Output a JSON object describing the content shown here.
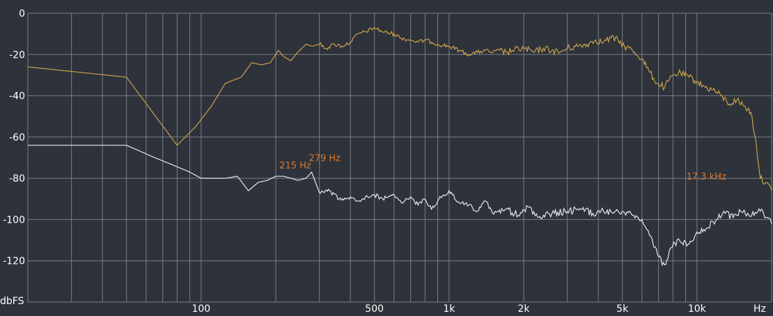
{
  "chart_data": {
    "type": "line",
    "title": "",
    "xlabel": "Hz",
    "ylabel": "dbFS",
    "x_scale": "log",
    "xlim": [
      20,
      20000
    ],
    "ylim": [
      -140,
      0
    ],
    "y_ticks": [
      0,
      -20,
      -40,
      -60,
      -80,
      -100,
      -120
    ],
    "y_tick_labels": [
      "0",
      "-20",
      "-40",
      "-60",
      "-80",
      "-100",
      "-120"
    ],
    "x_tick_values": [
      100,
      500,
      1000,
      2000,
      5000,
      10000
    ],
    "x_tick_labels": [
      "100",
      "500",
      "1k",
      "2k",
      "5k",
      "10k"
    ],
    "grid": true,
    "legend": "none",
    "series": [
      {
        "color": "#c9a24c",
        "x": [
          20,
          50,
          80,
          95,
          110,
          125,
          145,
          160,
          175,
          190,
          205,
          215,
          230,
          245,
          265,
          280,
          300,
          320,
          345,
          370,
          400,
          430,
          460,
          500,
          540,
          600,
          640,
          700,
          750,
          800,
          850,
          900,
          1000,
          1100,
          1200,
          1300,
          1400,
          1500,
          1600,
          1700,
          1800,
          2000,
          2200,
          2400,
          2600,
          2800,
          3000,
          3300,
          3600,
          3900,
          4200,
          4500,
          4800,
          5100,
          5500,
          6000,
          6400,
          6900,
          7400,
          8000,
          8600,
          9300,
          10000,
          10800,
          11600,
          12500,
          13500,
          14500,
          15500,
          16500,
          17300,
          18000,
          19000,
          20000
        ],
        "y": [
          -26,
          -31,
          -64,
          -55,
          -45,
          -34,
          -31,
          -24,
          -25,
          -24,
          -18,
          -21,
          -23,
          -19,
          -15,
          -16,
          -15,
          -17,
          -15,
          -16,
          -14,
          -10,
          -9,
          -7,
          -9,
          -10,
          -12,
          -13,
          -14,
          -13,
          -14,
          -15,
          -16,
          -18,
          -20,
          -19,
          -18,
          -19,
          -18,
          -19,
          -18,
          -17,
          -19,
          -17,
          -18,
          -19,
          -17,
          -16,
          -15,
          -13,
          -14,
          -12,
          -13,
          -16,
          -18,
          -22,
          -28,
          -34,
          -36,
          -30,
          -29,
          -31,
          -33,
          -36,
          -37,
          -40,
          -44,
          -42,
          -45,
          -48,
          -62,
          -80,
          -82,
          -86
        ]
      },
      {
        "color": "#e8e8e8",
        "x": [
          20,
          50,
          65,
          75,
          90,
          100,
          110,
          125,
          140,
          155,
          170,
          185,
          200,
          215,
          230,
          245,
          265,
          279,
          300,
          330,
          360,
          400,
          430,
          460,
          500,
          540,
          600,
          650,
          700,
          750,
          800,
          850,
          900,
          950,
          1000,
          1100,
          1200,
          1300,
          1400,
          1500,
          1700,
          1900,
          2100,
          2300,
          2600,
          3000,
          3400,
          3800,
          4200,
          4600,
          5000,
          5500,
          6000,
          6500,
          7000,
          7400,
          7800,
          8500,
          9200,
          10000,
          11000,
          12000,
          13000,
          14000,
          15000,
          16000,
          17000,
          18000,
          19000,
          20000
        ],
        "y": [
          -64,
          -64,
          -70,
          -73,
          -77,
          -80,
          -80,
          -80,
          -79,
          -86,
          -82,
          -81,
          -79,
          -79,
          -80,
          -81,
          -80,
          -77,
          -87,
          -86,
          -90,
          -89,
          -91,
          -89,
          -88,
          -90,
          -88,
          -92,
          -89,
          -93,
          -90,
          -95,
          -91,
          -88,
          -86,
          -92,
          -93,
          -96,
          -91,
          -97,
          -95,
          -98,
          -94,
          -99,
          -97,
          -96,
          -95,
          -97,
          -96,
          -97,
          -96,
          -98,
          -100,
          -108,
          -118,
          -122,
          -114,
          -110,
          -112,
          -106,
          -104,
          -100,
          -97,
          -99,
          -96,
          -97,
          -98,
          -96,
          -99,
          -102
        ]
      }
    ],
    "annotations": [
      {
        "text": "215 Hz",
        "x": 215,
        "y": -79
      },
      {
        "text": "279 Hz",
        "x": 279,
        "y": -77
      },
      {
        "text": "17.3  kHz",
        "x": 17300,
        "y": -80
      }
    ]
  }
}
